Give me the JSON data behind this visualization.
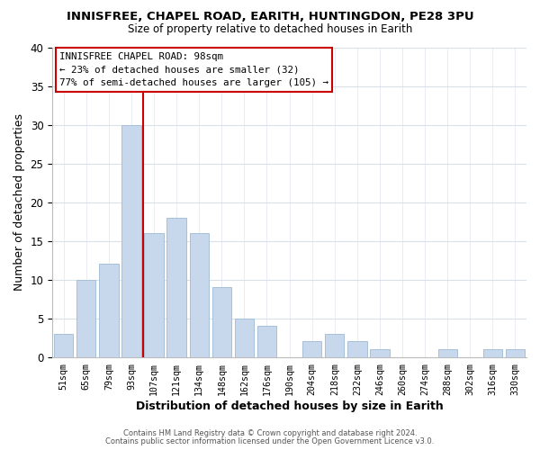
{
  "title": "INNISFREE, CHAPEL ROAD, EARITH, HUNTINGDON, PE28 3PU",
  "subtitle": "Size of property relative to detached houses in Earith",
  "xlabel": "Distribution of detached houses by size in Earith",
  "ylabel": "Number of detached properties",
  "bar_color": "#c8d8ec",
  "bar_edge_color": "#a8c0d8",
  "grid_color": "#d8e0ea",
  "background_color": "#ffffff",
  "categories": [
    "51sqm",
    "65sqm",
    "79sqm",
    "93sqm",
    "107sqm",
    "121sqm",
    "134sqm",
    "148sqm",
    "162sqm",
    "176sqm",
    "190sqm",
    "204sqm",
    "218sqm",
    "232sqm",
    "246sqm",
    "260sqm",
    "274sqm",
    "288sqm",
    "302sqm",
    "316sqm",
    "330sqm"
  ],
  "values": [
    3,
    10,
    12,
    30,
    16,
    18,
    16,
    9,
    5,
    4,
    0,
    2,
    3,
    2,
    1,
    0,
    0,
    1,
    0,
    1,
    1
  ],
  "ylim": [
    0,
    40
  ],
  "yticks": [
    0,
    5,
    10,
    15,
    20,
    25,
    30,
    35,
    40
  ],
  "vline_x": 3.5,
  "vline_color": "#cc0000",
  "annotation_title": "INNISFREE CHAPEL ROAD: 98sqm",
  "annotation_line1": "← 23% of detached houses are smaller (32)",
  "annotation_line2": "77% of semi-detached houses are larger (105) →",
  "footer_line1": "Contains HM Land Registry data © Crown copyright and database right 2024.",
  "footer_line2": "Contains public sector information licensed under the Open Government Licence v3.0."
}
